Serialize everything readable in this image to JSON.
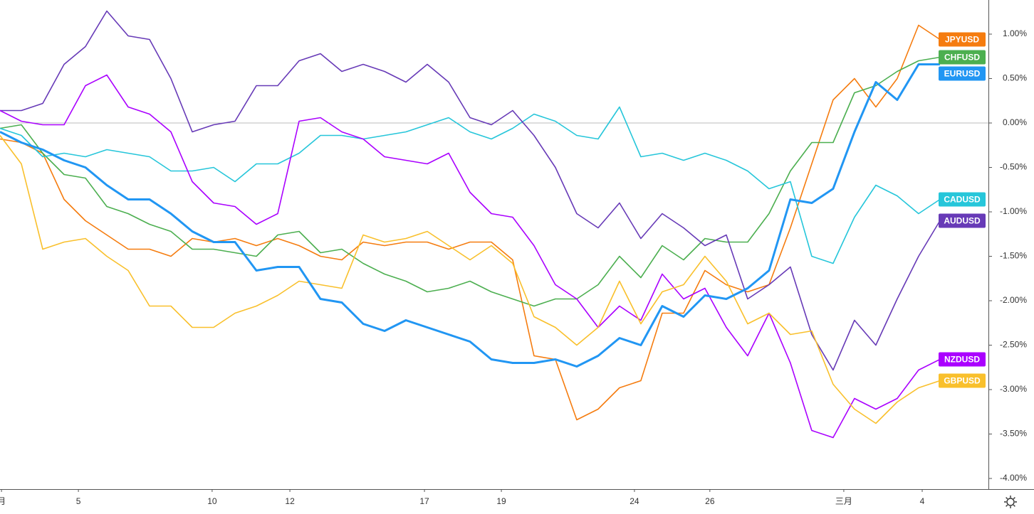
{
  "chart_data": {
    "type": "line",
    "x": [
      0,
      1,
      2,
      3,
      4,
      5,
      6,
      7,
      8,
      9,
      10,
      11,
      12,
      13,
      14,
      15,
      16,
      17,
      18,
      19,
      20,
      21,
      22,
      23,
      24,
      25,
      26,
      27,
      28,
      29,
      30,
      31,
      32,
      33,
      34,
      35,
      36,
      37,
      38,
      39,
      40,
      41,
      42,
      43,
      44
    ],
    "xlim": [
      0,
      46.27
    ],
    "xticks": [
      {
        "value": 0.07,
        "label": "月"
      },
      {
        "value": 3.67,
        "label": "5"
      },
      {
        "value": 9.93,
        "label": "10"
      },
      {
        "value": 13.57,
        "label": "12"
      },
      {
        "value": 19.87,
        "label": "17"
      },
      {
        "value": 23.47,
        "label": "19"
      },
      {
        "value": 29.7,
        "label": "24"
      },
      {
        "value": 33.23,
        "label": "26"
      },
      {
        "value": 39.5,
        "label": "三月"
      },
      {
        "value": 43.17,
        "label": "4"
      }
    ],
    "ylim": [
      -4.12,
      1.384
    ],
    "yticks": [
      {
        "value": 1,
        "label": "1.00%"
      },
      {
        "value": 0.5,
        "label": "0.50%"
      },
      {
        "value": 0,
        "label": "0.00%"
      },
      {
        "value": -0.5,
        "label": "-0.50%"
      },
      {
        "value": -1,
        "label": "-1.00%"
      },
      {
        "value": -1.5,
        "label": "-1.50%"
      },
      {
        "value": -2,
        "label": "-2.00%"
      },
      {
        "value": -2.5,
        "label": "-2.50%"
      },
      {
        "value": -3,
        "label": "-3.00%"
      },
      {
        "value": -3.5,
        "label": "-3.50%"
      },
      {
        "value": -4,
        "label": "-4.00%"
      }
    ],
    "zero_line": true,
    "series": [
      {
        "name": "JPYUSD",
        "color": "#f57c0f",
        "values": [
          -0.18,
          -0.22,
          -0.34,
          -0.86,
          -1.1,
          -1.26,
          -1.42,
          -1.42,
          -1.5,
          -1.3,
          -1.34,
          -1.3,
          -1.38,
          -1.3,
          -1.38,
          -1.5,
          -1.54,
          -1.34,
          -1.38,
          -1.34,
          -1.34,
          -1.42,
          -1.34,
          -1.34,
          -1.54,
          -2.62,
          -2.66,
          -3.34,
          -3.22,
          -2.98,
          -2.9,
          -2.14,
          -2.14,
          -1.66,
          -1.82,
          -1.9,
          -1.82,
          -1.18,
          -0.46,
          0.26,
          0.5,
          0.18,
          0.5,
          1.1,
          0.94
        ]
      },
      {
        "name": "CHFUSD",
        "color": "#4caf50",
        "values": [
          -0.06,
          -0.02,
          -0.34,
          -0.58,
          -0.62,
          -0.94,
          -1.02,
          -1.14,
          -1.22,
          -1.42,
          -1.42,
          -1.46,
          -1.5,
          -1.26,
          -1.22,
          -1.46,
          -1.42,
          -1.58,
          -1.7,
          -1.78,
          -1.9,
          -1.86,
          -1.78,
          -1.9,
          -1.98,
          -2.06,
          -1.98,
          -1.98,
          -1.82,
          -1.5,
          -1.74,
          -1.38,
          -1.54,
          -1.3,
          -1.34,
          -1.34,
          -1.02,
          -0.54,
          -0.22,
          -0.22,
          0.34,
          0.42,
          0.58,
          0.7,
          0.74
        ]
      },
      {
        "name": "EURUSD",
        "color": "#2196f3",
        "values": [
          -0.1,
          -0.22,
          -0.3,
          -0.42,
          -0.5,
          -0.7,
          -0.86,
          -0.86,
          -1.02,
          -1.22,
          -1.34,
          -1.34,
          -1.66,
          -1.62,
          -1.62,
          -1.98,
          -2.02,
          -2.26,
          -2.34,
          -2.22,
          -2.3,
          -2.38,
          -2.46,
          -2.66,
          -2.7,
          -2.7,
          -2.66,
          -2.74,
          -2.62,
          -2.42,
          -2.5,
          -2.06,
          -2.18,
          -1.94,
          -1.98,
          -1.86,
          -1.66,
          -0.86,
          -0.9,
          -0.74,
          -0.1,
          0.46,
          0.26,
          0.66,
          0.66
        ]
      },
      {
        "name": "CADUSD",
        "color": "#26c6da",
        "values": [
          -0.06,
          -0.14,
          -0.38,
          -0.34,
          -0.38,
          -0.3,
          -0.34,
          -0.38,
          -0.54,
          -0.54,
          -0.5,
          -0.66,
          -0.46,
          -0.46,
          -0.34,
          -0.14,
          -0.14,
          -0.18,
          -0.14,
          -0.1,
          -0.02,
          0.06,
          -0.1,
          -0.18,
          -0.06,
          0.1,
          0.02,
          -0.14,
          -0.18,
          0.18,
          -0.38,
          -0.34,
          -0.42,
          -0.34,
          -0.42,
          -0.54,
          -0.74,
          -0.66,
          -1.5,
          -1.58,
          -1.06,
          -0.7,
          -0.82,
          -1.02,
          -0.86
        ]
      },
      {
        "name": "AUDUSD",
        "color": "#673ab7",
        "values": [
          0.14,
          0.14,
          0.22,
          0.66,
          0.86,
          1.26,
          0.98,
          0.94,
          0.5,
          -0.1,
          -0.02,
          0.02,
          0.42,
          0.42,
          0.7,
          0.78,
          0.58,
          0.66,
          0.58,
          0.46,
          0.66,
          0.46,
          0.06,
          -0.02,
          0.14,
          -0.14,
          -0.5,
          -1.02,
          -1.18,
          -0.9,
          -1.3,
          -1.02,
          -1.18,
          -1.38,
          -1.26,
          -1.98,
          -1.82,
          -1.62,
          -2.38,
          -2.78,
          -2.22,
          -2.5,
          -1.98,
          -1.5,
          -1.1
        ]
      },
      {
        "name": "NZDUSD",
        "color": "#aa00ff",
        "values": [
          0.14,
          0.02,
          -0.02,
          -0.02,
          0.42,
          0.54,
          0.18,
          0.1,
          -0.1,
          -0.66,
          -0.9,
          -0.94,
          -1.14,
          -1.02,
          0.02,
          0.06,
          -0.1,
          -0.18,
          -0.38,
          -0.42,
          -0.46,
          -0.34,
          -0.78,
          -1.02,
          -1.06,
          -1.38,
          -1.82,
          -1.98,
          -2.3,
          -2.06,
          -2.22,
          -1.7,
          -1.98,
          -1.86,
          -2.3,
          -2.62,
          -2.14,
          -2.7,
          -3.46,
          -3.54,
          -3.1,
          -3.22,
          -3.1,
          -2.78,
          -2.66
        ]
      },
      {
        "name": "GBPUSD",
        "color": "#f9c02c",
        "values": [
          -0.14,
          -0.46,
          -1.42,
          -1.34,
          -1.3,
          -1.5,
          -1.66,
          -2.06,
          -2.06,
          -2.3,
          -2.3,
          -2.14,
          -2.06,
          -1.94,
          -1.78,
          -1.82,
          -1.86,
          -1.26,
          -1.34,
          -1.3,
          -1.22,
          -1.38,
          -1.54,
          -1.38,
          -1.58,
          -2.18,
          -2.3,
          -2.5,
          -2.3,
          -1.78,
          -2.26,
          -1.9,
          -1.82,
          -1.5,
          -1.78,
          -2.26,
          -2.14,
          -2.38,
          -2.34,
          -2.94,
          -3.22,
          -3.38,
          -3.14,
          -2.98,
          -2.9
        ]
      }
    ]
  }
}
